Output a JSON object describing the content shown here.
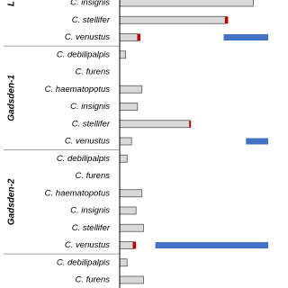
{
  "chart_data": {
    "type": "bar",
    "orientation": "horizontal",
    "xlim": [
      0,
      100
    ],
    "groups": [
      {
        "name": "L",
        "categories": [
          "C. insignis",
          "C. stellifer",
          "C. venustus"
        ],
        "series": [
          {
            "color": "#d9d9d9",
            "values": [
              90,
              71,
              12
            ]
          },
          {
            "color": "#c00000",
            "values": [
              0,
              2,
              2
            ]
          },
          {
            "color": "#4472c4",
            "values": [
              null,
              null,
              [
                70,
                100
              ]
            ]
          }
        ]
      },
      {
        "name": "Gadsden-1",
        "categories": [
          "C. debilipalpis",
          "C. furens",
          "C. haematopotus",
          "C. insignis",
          "C. stellifer",
          "C. venustus"
        ],
        "series": [
          {
            "color": "#d9d9d9",
            "values": [
              4,
              0,
              15,
              12,
              47,
              8
            ]
          },
          {
            "color": "#c00000",
            "values": [
              0,
              0,
              0,
              0,
              1,
              0
            ]
          },
          {
            "color": "#4472c4",
            "values": [
              null,
              null,
              null,
              null,
              null,
              [
                85,
                100
              ]
            ]
          }
        ]
      },
      {
        "name": "Gadsden-2",
        "categories": [
          "C. debilipalpis",
          "C. furens",
          "C. haematopotus",
          "C. insignis",
          "C. stellifer",
          "C. venustus"
        ],
        "series": [
          {
            "color": "#d9d9d9",
            "values": [
              5,
              0,
              15,
              11,
              16,
              9
            ]
          },
          {
            "color": "#c00000",
            "values": [
              0,
              0,
              0,
              0,
              0,
              2
            ]
          },
          {
            "color": "#4472c4",
            "values": [
              null,
              null,
              null,
              null,
              null,
              [
                24,
                100
              ]
            ]
          }
        ]
      },
      {
        "name": null,
        "categories": [
          "C. debilipalpis",
          "C. furens"
        ],
        "series": [
          {
            "color": "#d9d9d9",
            "values": [
              5,
              16
            ]
          },
          {
            "color": "#c00000",
            "values": [
              0,
              0
            ]
          },
          {
            "color": "#4472c4",
            "values": [
              null,
              null
            ]
          }
        ]
      }
    ]
  }
}
